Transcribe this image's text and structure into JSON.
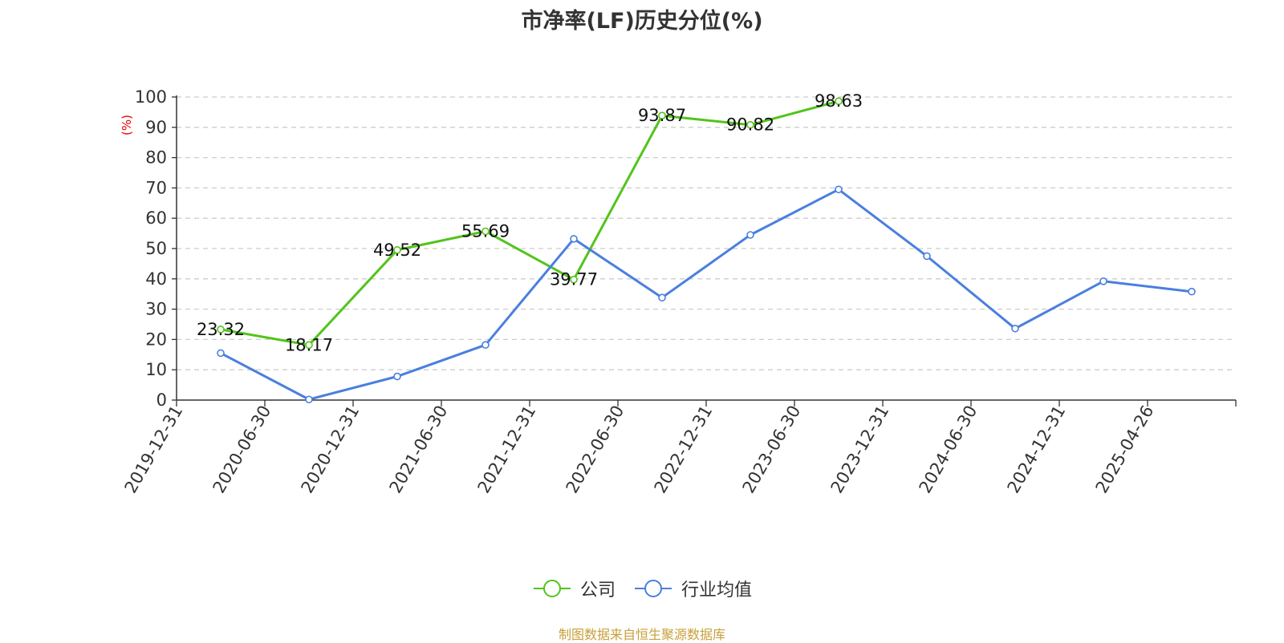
{
  "chart_data": {
    "type": "line",
    "title": "市净率(LF)历史分位(%)",
    "ylabel": "(%)",
    "xlabel": "",
    "ylim": [
      0,
      100
    ],
    "yticks": [
      0,
      10,
      20,
      30,
      40,
      50,
      60,
      70,
      80,
      90,
      100
    ],
    "grid": true,
    "legend_position": "bottom",
    "categories": [
      "2019-12-31",
      "2020-06-30",
      "2020-12-31",
      "2021-06-30",
      "2021-12-31",
      "2022-06-30",
      "2022-12-31",
      "2023-06-30",
      "2023-12-31",
      "2024-06-30",
      "2024-12-31",
      "2025-04-26"
    ],
    "series": [
      {
        "name": "公司",
        "color": "#52c41a",
        "show_labels": true,
        "values": [
          23.32,
          18.17,
          49.52,
          55.69,
          39.77,
          93.87,
          90.82,
          98.63,
          null,
          null,
          null,
          null
        ],
        "labels": [
          "23.32",
          "18.17",
          "49.52",
          "55.69",
          "39.77",
          "93.87",
          "90.82",
          "98.63",
          null,
          null,
          null,
          null
        ]
      },
      {
        "name": "行业均值",
        "color": "#4a7fdf",
        "show_labels": false,
        "values": [
          15.5,
          0.2,
          7.8,
          18.2,
          53.2,
          33.8,
          54.5,
          69.5,
          47.5,
          23.6,
          39.2,
          35.8
        ]
      }
    ]
  },
  "source_note": "制图数据来自恒生聚源数据库",
  "colors": {
    "source_note": "#c8a03c",
    "ylabel": "#e00000",
    "axis": "#333333",
    "grid": "#cccccc"
  }
}
